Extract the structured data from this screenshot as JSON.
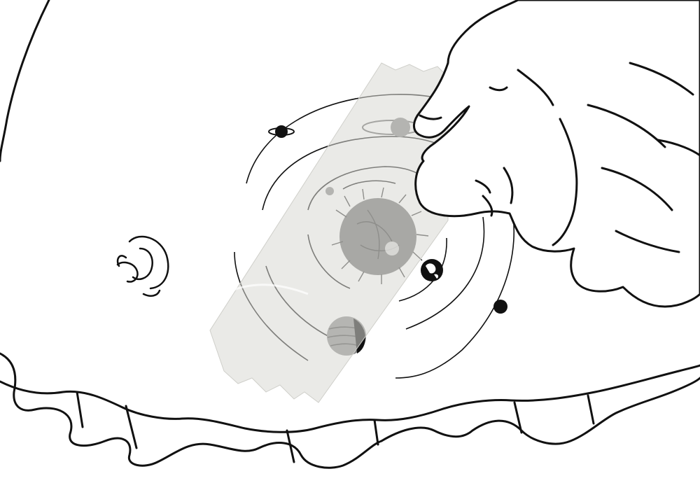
{
  "illustration": {
    "style": "black ink line drawing with a translucent tape strip",
    "colors": {
      "ink": "#111111",
      "paper": "#ffffff",
      "tape": "#d9d9d4",
      "tape_edge": "#cfcfca",
      "sun_fill": "#6e6e6e",
      "planet_shade": "#8a8a8a"
    },
    "elements": [
      "pot-belly-outline",
      "belly-button-swirl",
      "hand-pressing-tape",
      "tape-strip",
      "solar-system-sketch"
    ],
    "solar_system": {
      "orbit_count": 4,
      "planets": [
        "ringed-planet",
        "small-ringed-planet",
        "tiny-planet",
        "earth-like-planet",
        "striped-planet",
        "dark-planet"
      ]
    }
  }
}
